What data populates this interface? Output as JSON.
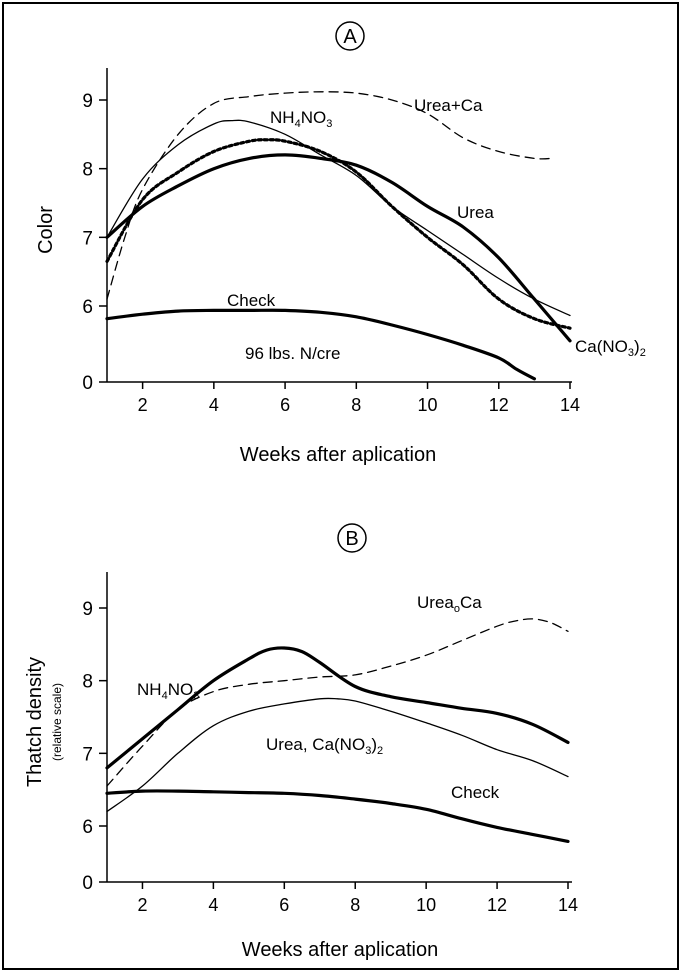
{
  "chart_data": [
    {
      "type": "line",
      "panel_label": "A",
      "xlabel": "Weeks after aplication",
      "ylabel": "Color",
      "xlim": [
        1,
        14
      ],
      "x_ticks": [
        2,
        4,
        6,
        8,
        10,
        12,
        14
      ],
      "y_ticks": [
        "0",
        "6",
        "7",
        "8",
        "9"
      ],
      "y_scale": "broken: 0 then 6-9",
      "note": "96 lbs. N/cre",
      "grid": false,
      "series": [
        {
          "name": "Urea+Ca",
          "style": "dashed",
          "x": [
            1,
            1.5,
            2,
            3,
            4,
            5,
            6,
            7,
            8,
            9,
            10,
            11,
            12,
            13,
            13.5
          ],
          "y": [
            6.1,
            7.0,
            7.7,
            8.5,
            8.95,
            9.05,
            9.1,
            9.12,
            9.1,
            9.0,
            8.8,
            8.45,
            8.25,
            8.15,
            8.15
          ]
        },
        {
          "name": "NH4NO3",
          "label_main": "NH",
          "label_sub1": "4",
          "label_mid": "NO",
          "label_sub2": "3",
          "style": "thin",
          "x": [
            1,
            2,
            3,
            4,
            4.5,
            5,
            6,
            7,
            8,
            9,
            10,
            11,
            12,
            13,
            14
          ],
          "y": [
            7.0,
            7.85,
            8.35,
            8.65,
            8.7,
            8.68,
            8.5,
            8.2,
            7.9,
            7.45,
            7.1,
            6.75,
            6.4,
            6.1,
            5.85
          ]
        },
        {
          "name": "Ca(NO3)2",
          "label_main": "Ca(NO",
          "label_sub": "3",
          "label_end": ")",
          "label_sub2": "2",
          "style": "dotted",
          "x": [
            1,
            2,
            3,
            4,
            5,
            5.5,
            6,
            7,
            8,
            9,
            10,
            11,
            12,
            13,
            14
          ],
          "y": [
            6.65,
            7.55,
            7.95,
            8.25,
            8.4,
            8.42,
            8.4,
            8.25,
            7.95,
            7.45,
            7.0,
            6.6,
            6.1,
            5.8,
            5.65
          ]
        },
        {
          "name": "Urea",
          "style": "thick",
          "x": [
            1,
            2,
            3,
            4,
            5,
            6,
            7,
            8,
            9,
            10,
            11,
            12,
            13,
            14
          ],
          "y": [
            7.0,
            7.45,
            7.75,
            8.0,
            8.15,
            8.2,
            8.15,
            8.05,
            7.8,
            7.45,
            7.15,
            6.7,
            6.1,
            5.45
          ]
        },
        {
          "name": "Check",
          "style": "thick",
          "x": [
            1,
            2,
            3,
            4,
            5,
            6,
            7,
            8,
            9,
            10,
            11,
            12,
            12.5,
            13
          ],
          "y": [
            5.8,
            5.87,
            5.92,
            5.93,
            5.93,
            5.93,
            5.9,
            5.83,
            5.7,
            5.55,
            5.38,
            5.18,
            5.0,
            4.85
          ]
        }
      ]
    },
    {
      "type": "line",
      "panel_label": "B",
      "xlabel": "Weeks after aplication",
      "ylabel": "Thatch density",
      "ylabel_sub": "(relative scale)",
      "xlim": [
        1,
        14
      ],
      "x_ticks": [
        2,
        4,
        6,
        8,
        10,
        12,
        14
      ],
      "y_ticks": [
        "0",
        "6",
        "7",
        "8",
        "9"
      ],
      "y_scale": "broken: 0 then 6-9",
      "grid": false,
      "series": [
        {
          "name": "UreaoCa",
          "label_main": "Urea",
          "label_sub": "o",
          "label_end": "Ca",
          "style": "dashed",
          "x": [
            1,
            2,
            3,
            4,
            5,
            6,
            7,
            8,
            9,
            10,
            11,
            12,
            12.5,
            13,
            13.5,
            14
          ],
          "y": [
            6.55,
            7.1,
            7.6,
            7.85,
            7.95,
            8.0,
            8.05,
            8.08,
            8.2,
            8.35,
            8.55,
            8.75,
            8.82,
            8.85,
            8.8,
            8.68
          ]
        },
        {
          "name": "NH4NO3",
          "label_main": "NH",
          "label_sub1": "4",
          "label_mid": "NO",
          "label_sub2": "3",
          "style": "thick",
          "x": [
            1,
            2,
            3,
            4,
            5,
            5.5,
            6,
            6.5,
            7,
            8,
            9,
            10,
            11,
            12,
            13,
            14
          ],
          "y": [
            6.8,
            7.2,
            7.6,
            8.0,
            8.3,
            8.42,
            8.45,
            8.4,
            8.25,
            7.92,
            7.78,
            7.7,
            7.62,
            7.55,
            7.4,
            7.15
          ]
        },
        {
          "name": "Urea, Ca(NO3)2",
          "label_main": "Urea, Ca(NO",
          "label_sub": "3",
          "label_end": ")",
          "label_sub2": "2",
          "style": "thin",
          "x": [
            1,
            2,
            3,
            4,
            5,
            6,
            7,
            7.5,
            8,
            9,
            10,
            11,
            12,
            13,
            14
          ],
          "y": [
            6.2,
            6.55,
            7.0,
            7.38,
            7.58,
            7.68,
            7.75,
            7.75,
            7.72,
            7.58,
            7.42,
            7.25,
            7.05,
            6.9,
            6.68
          ]
        },
        {
          "name": "Check",
          "style": "thick",
          "x": [
            1,
            2,
            3,
            4,
            5,
            6,
            7,
            8,
            9,
            10,
            11,
            12,
            13,
            14
          ],
          "y": [
            6.45,
            6.48,
            6.48,
            6.47,
            6.46,
            6.45,
            6.42,
            6.37,
            6.31,
            6.23,
            6.1,
            5.97,
            5.82,
            5.67
          ]
        }
      ]
    }
  ]
}
